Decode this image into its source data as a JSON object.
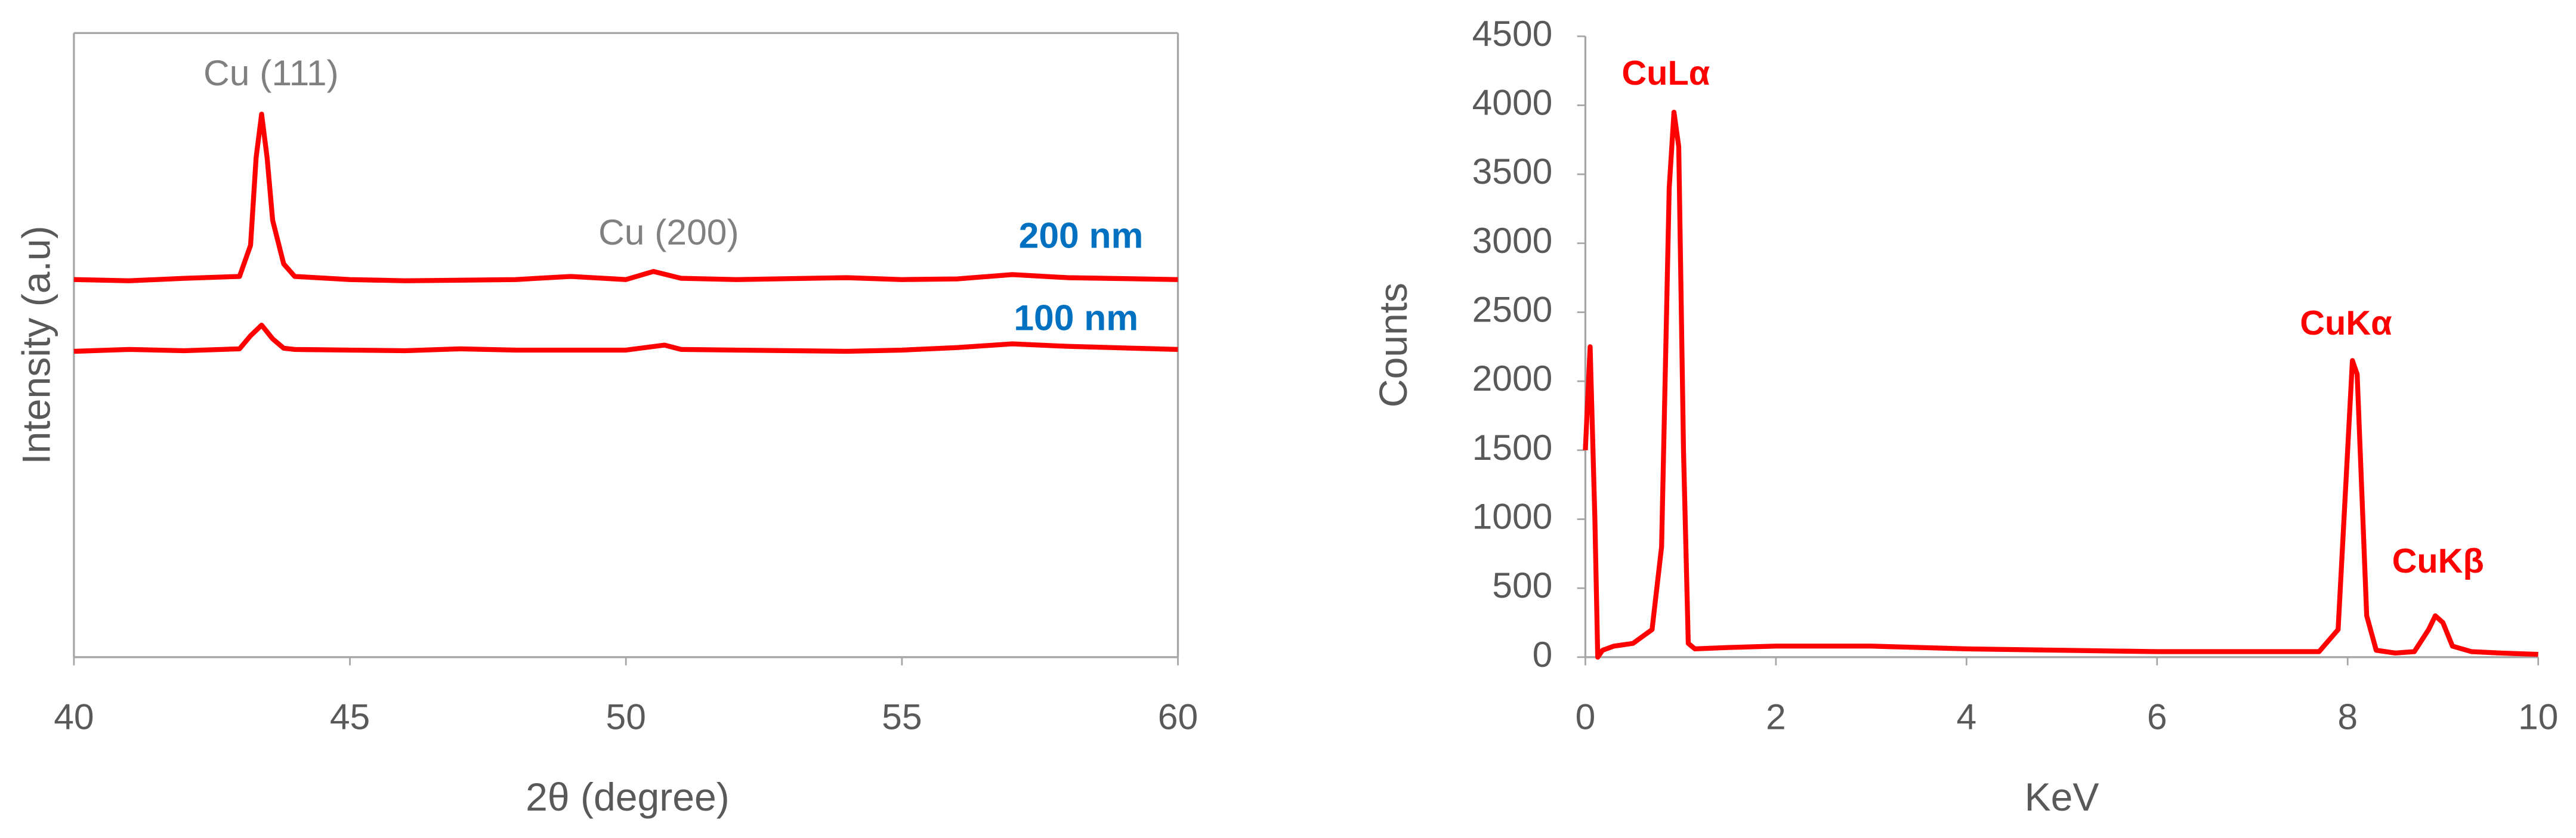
{
  "chart_data": [
    {
      "type": "line",
      "x_label": "2θ (degree)",
      "y_label": "Intensity (a.u)",
      "xlim": [
        40,
        60
      ],
      "xticks": [
        40,
        45,
        50,
        55,
        60
      ],
      "ylim": [
        0,
        100
      ],
      "annotations": [
        {
          "text": "Cu (111)"
        },
        {
          "text": "Cu (200)"
        }
      ],
      "series": [
        {
          "name": "200 nm",
          "color": "#ff0000",
          "x": [
            40,
            41,
            42,
            43,
            43.2,
            43.3,
            43.4,
            43.5,
            43.6,
            43.8,
            44,
            45,
            46,
            48,
            49,
            50,
            50.5,
            51,
            52,
            54,
            55,
            56,
            57,
            58,
            60
          ],
          "values": [
            60.5,
            60.3,
            60.7,
            61,
            66,
            80,
            87,
            80,
            70,
            63,
            61,
            60.5,
            60.3,
            60.5,
            61,
            60.5,
            61.8,
            60.7,
            60.5,
            60.8,
            60.5,
            60.6,
            61.3,
            60.8,
            60.5
          ]
        },
        {
          "name": "100 nm",
          "color": "#ff0000",
          "x": [
            40,
            41,
            42,
            43,
            43.2,
            43.4,
            43.6,
            43.8,
            44,
            45,
            46,
            47,
            48,
            50,
            50.7,
            51,
            52,
            54,
            55,
            56,
            57,
            58,
            60
          ],
          "values": [
            49,
            49.3,
            49.1,
            49.4,
            51.5,
            53.2,
            51,
            49.5,
            49.3,
            49.2,
            49.1,
            49.4,
            49.2,
            49.2,
            50,
            49.3,
            49.2,
            49,
            49.2,
            49.6,
            50.2,
            49.8,
            49.3
          ]
        }
      ]
    },
    {
      "type": "line",
      "x_label": "KeV",
      "y_label": "Counts",
      "xlim": [
        0,
        10
      ],
      "xticks": [
        0,
        2,
        4,
        6,
        8,
        10
      ],
      "ylim": [
        0,
        4500
      ],
      "yticks": [
        0,
        500,
        1000,
        1500,
        2000,
        2500,
        3000,
        3500,
        4000,
        4500
      ],
      "annotations": [
        {
          "text": "CuLα"
        },
        {
          "text": "CuKα"
        },
        {
          "text": "CuKβ"
        }
      ],
      "series": [
        {
          "color": "#ff0000",
          "x": [
            0,
            0.05,
            0.1,
            0.13,
            0.18,
            0.3,
            0.5,
            0.7,
            0.8,
            0.88,
            0.93,
            0.98,
            1.03,
            1.08,
            1.15,
            1.5,
            2,
            3,
            4,
            5,
            6,
            7,
            7.7,
            7.9,
            8.0,
            8.05,
            8.1,
            8.2,
            8.3,
            8.5,
            8.7,
            8.85,
            8.92,
            9.0,
            9.1,
            9.3,
            9.6,
            10
          ],
          "values": [
            1500,
            2250,
            1000,
            0,
            50,
            80,
            100,
            200,
            800,
            3400,
            3950,
            3700,
            1500,
            100,
            60,
            70,
            80,
            80,
            60,
            50,
            40,
            40,
            40,
            200,
            1500,
            2150,
            2050,
            300,
            50,
            30,
            40,
            200,
            300,
            250,
            80,
            40,
            30,
            20
          ]
        }
      ]
    }
  ]
}
